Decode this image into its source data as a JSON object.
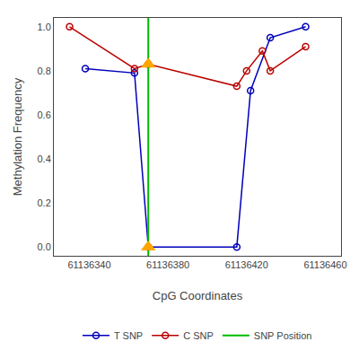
{
  "chart_data": {
    "type": "line",
    "x_label": "CpG Coordinates",
    "y_label": "Methylation Frequency",
    "series": [
      {
        "name": "T SNP",
        "type": "line",
        "color": "#0000BB",
        "marker": "circle-open",
        "x": [
          61136338,
          61136363,
          61136370,
          61136415,
          61136422,
          61136432,
          61136450
        ],
        "values": [
          0.81,
          0.79,
          0.0,
          0.0,
          0.71,
          0.95,
          1.0
        ]
      },
      {
        "name": "C SNP",
        "type": "line",
        "color": "#BB0000",
        "marker": "circle-open",
        "x": [
          61136330,
          61136363,
          61136370,
          61136415,
          61136420,
          61136428,
          61136432,
          61136450
        ],
        "values": [
          1.0,
          0.81,
          0.83,
          0.73,
          0.8,
          0.89,
          0.8,
          0.91
        ]
      },
      {
        "name": "SNP Position",
        "type": "vline",
        "color": "#00BB00",
        "x": [
          61136370
        ]
      },
      {
        "type": "scatter",
        "color": "#FFA500",
        "marker": "triangle-up",
        "x": [
          61136370,
          61136370
        ],
        "values": [
          0.83,
          0.0
        ]
      }
    ],
    "xlim": [
      61136322,
      61136468
    ],
    "ylim": [
      -0.04,
      1.04
    ],
    "xticks": [
      61136340,
      61136380,
      61136420,
      61136460
    ],
    "yticks": [
      {
        "value": 0.0,
        "label": "0.0"
      },
      0.2,
      0.4,
      0.6,
      0.8,
      {
        "value": 1.0,
        "label": "1.0"
      }
    ],
    "grid": false,
    "legend": "bottom"
  }
}
